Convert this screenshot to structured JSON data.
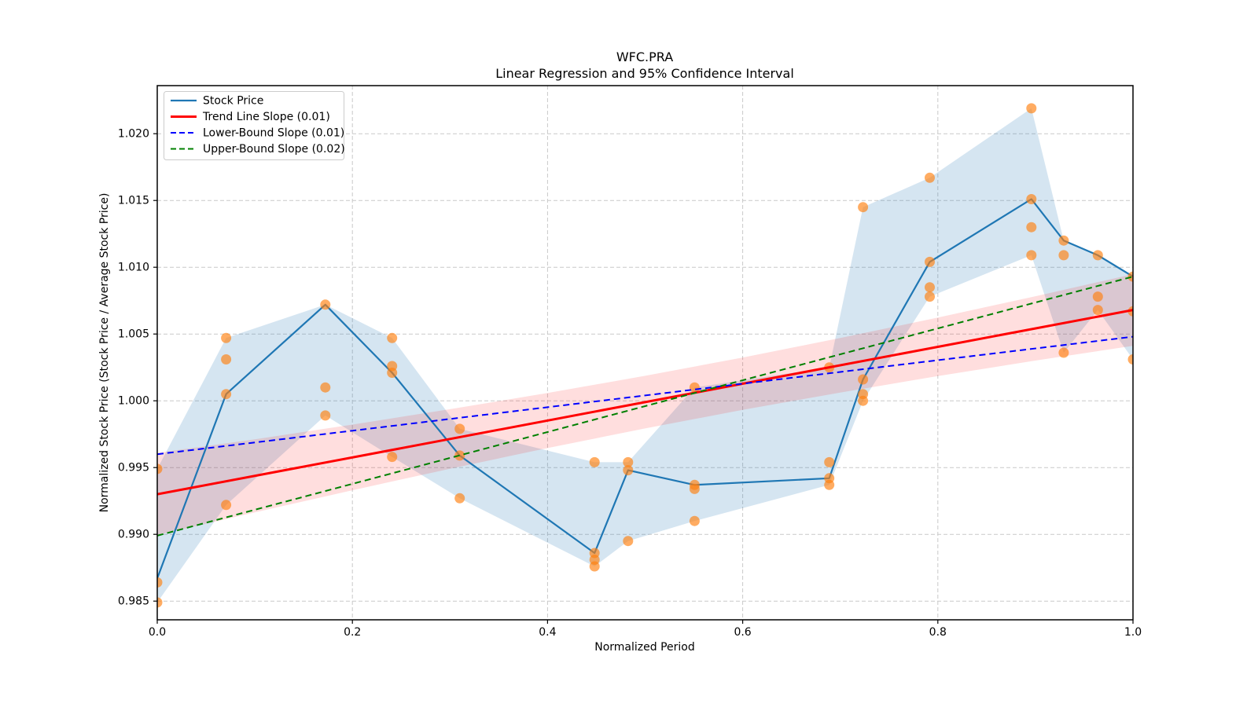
{
  "chart_data": {
    "type": "line",
    "title": "WFC.PRA",
    "subtitle": "Linear Regression and 95% Confidence Interval",
    "xlabel": "Normalized Period",
    "ylabel": "Normalized Stock Price (Stock Price / Average Stock Price)",
    "xlim": [
      0.0,
      1.0
    ],
    "ylim": [
      0.9836,
      1.0236
    ],
    "xticks": [
      "0.0",
      "0.2",
      "0.4",
      "0.6",
      "0.8",
      "1.0"
    ],
    "yticks": [
      "0.985",
      "0.990",
      "0.995",
      "1.000",
      "1.005",
      "1.010",
      "1.015",
      "1.020"
    ],
    "grid": true,
    "legend_position": "upper left",
    "legend": [
      {
        "label": "Stock Price",
        "color": "#1f77b4",
        "dash": "solid"
      },
      {
        "label": "Trend Line Slope (0.01)",
        "color": "#ff0000",
        "dash": "solid"
      },
      {
        "label": "Lower-Bound Slope (0.01)",
        "color": "#0000ff",
        "dash": "dashed"
      },
      {
        "label": "Upper-Bound Slope (0.02)",
        "color": "#008000",
        "dash": "dashed"
      }
    ],
    "series": [
      {
        "name": "Stock Price",
        "type": "line",
        "color": "#1f77b4",
        "style": "solid",
        "width": 2.2,
        "x": [
          0.0,
          0.0706,
          0.1723,
          0.2407,
          0.31,
          0.4482,
          0.4825,
          0.5507,
          0.6887,
          0.7233,
          0.7917,
          0.8959,
          0.929,
          0.964,
          1.0
        ],
        "y": [
          0.9867,
          1.0005,
          1.0072,
          1.0021,
          0.9959,
          0.9886,
          0.9948,
          0.9937,
          0.9942,
          1.0016,
          1.0104,
          1.0151,
          1.012,
          1.0109,
          1.0093
        ]
      },
      {
        "name": "Stock Price observations",
        "type": "scatter",
        "color": "#ff7f0e",
        "opacity": 0.65,
        "radius": 6.5,
        "points": [
          [
            0.0,
            0.9949
          ],
          [
            0.0,
            0.9864
          ],
          [
            0.0,
            0.9849
          ],
          [
            0.0706,
            1.0047
          ],
          [
            0.0706,
            1.0031
          ],
          [
            0.0706,
            1.0005
          ],
          [
            0.0706,
            0.9922
          ],
          [
            0.1723,
            1.0072
          ],
          [
            0.1723,
            1.001
          ],
          [
            0.1723,
            0.9989
          ],
          [
            0.2407,
            1.0047
          ],
          [
            0.2407,
            1.0026
          ],
          [
            0.2407,
            1.0021
          ],
          [
            0.2407,
            0.9958
          ],
          [
            0.31,
            0.9979
          ],
          [
            0.31,
            0.9959
          ],
          [
            0.31,
            0.9927
          ],
          [
            0.4482,
            0.9954
          ],
          [
            0.4482,
            0.9886
          ],
          [
            0.4482,
            0.9881
          ],
          [
            0.4482,
            0.9876
          ],
          [
            0.4825,
            0.9954
          ],
          [
            0.4825,
            0.9948
          ],
          [
            0.4825,
            0.9895
          ],
          [
            0.5507,
            1.001
          ],
          [
            0.5507,
            0.9937
          ],
          [
            0.5507,
            0.9934
          ],
          [
            0.5507,
            0.991
          ],
          [
            0.6887,
            1.0025
          ],
          [
            0.6887,
            0.9954
          ],
          [
            0.6887,
            0.9942
          ],
          [
            0.6887,
            0.9937
          ],
          [
            0.7233,
            1.0145
          ],
          [
            0.7233,
            1.0016
          ],
          [
            0.7233,
            1.0005
          ],
          [
            0.7233,
            1.0
          ],
          [
            0.7917,
            1.0167
          ],
          [
            0.7917,
            1.0104
          ],
          [
            0.7917,
            1.0085
          ],
          [
            0.7917,
            1.0078
          ],
          [
            0.8959,
            1.0219
          ],
          [
            0.8959,
            1.0151
          ],
          [
            0.8959,
            1.013
          ],
          [
            0.8959,
            1.0109
          ],
          [
            0.929,
            1.012
          ],
          [
            0.929,
            1.0109
          ],
          [
            0.929,
            1.0036
          ],
          [
            0.964,
            1.0109
          ],
          [
            0.964,
            1.0078
          ],
          [
            0.964,
            1.0068
          ],
          [
            1.0,
            1.0093
          ],
          [
            1.0,
            1.0067
          ],
          [
            1.0,
            1.0031
          ]
        ]
      },
      {
        "name": "Trend Line Slope (0.01)",
        "type": "line",
        "color": "#ff0000",
        "style": "solid",
        "width": 3,
        "x": [
          0.0,
          1.0
        ],
        "y": [
          0.993,
          1.0068
        ]
      },
      {
        "name": "Lower-Bound Slope (0.01)",
        "type": "line",
        "color": "#0000ff",
        "style": "dashed",
        "width": 2,
        "x": [
          0.0,
          1.0
        ],
        "y": [
          0.996,
          1.0048
        ]
      },
      {
        "name": "Upper-Bound Slope (0.02)",
        "type": "line",
        "color": "#008000",
        "style": "dashed",
        "width": 2,
        "x": [
          0.0,
          1.0
        ],
        "y": [
          0.9899,
          1.0093
        ]
      }
    ],
    "bands": [
      {
        "name": "stock-price-range-band",
        "color": "#1f77b4",
        "opacity": 0.19,
        "x": [
          0.0,
          0.0706,
          0.1723,
          0.2407,
          0.31,
          0.4482,
          0.4825,
          0.5507,
          0.6887,
          0.7233,
          0.7917,
          0.8959,
          0.929,
          0.964,
          1.0
        ],
        "upper": [
          0.9949,
          1.0047,
          1.0072,
          1.0047,
          0.9979,
          0.9954,
          0.9954,
          1.001,
          1.0025,
          1.0145,
          1.0167,
          1.0219,
          1.012,
          1.0109,
          1.0093
        ],
        "lower": [
          0.9849,
          0.9922,
          0.9989,
          0.9958,
          0.9927,
          0.9876,
          0.9895,
          0.991,
          0.9937,
          1.0,
          1.0078,
          1.0109,
          1.0036,
          1.0068,
          1.0031
        ]
      },
      {
        "name": "confidence-interval-band",
        "color": "#ff0000",
        "opacity": 0.13,
        "x": [
          0.0,
          0.1,
          0.2,
          0.3,
          0.4,
          0.5,
          0.6,
          0.7,
          0.8,
          0.9,
          1.0
        ],
        "upper": [
          0.9961,
          0.99712,
          0.99822,
          0.99937,
          1.00058,
          1.00187,
          1.00324,
          1.0047,
          1.00623,
          1.00783,
          1.00948
        ],
        "lower": [
          0.98995,
          0.99164,
          0.9933,
          0.99491,
          0.99646,
          0.99793,
          0.99932,
          1.00062,
          1.00185,
          1.00301,
          1.00412
        ]
      }
    ]
  }
}
